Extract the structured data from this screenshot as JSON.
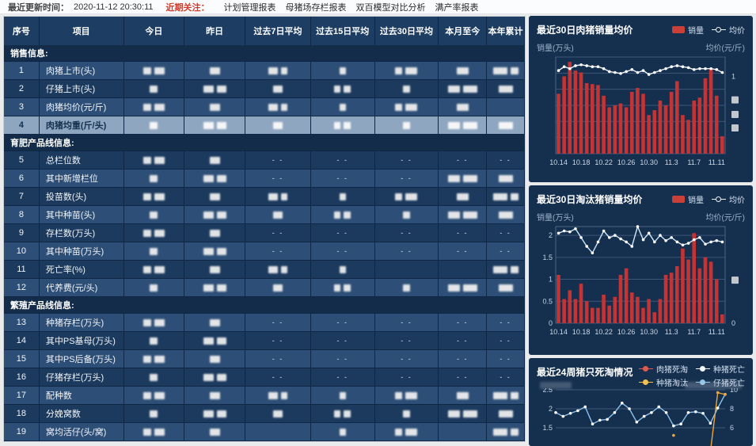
{
  "topbar": {
    "updated_label": "最近更新时间：",
    "updated_time": "2020-11-12 20:30:11",
    "focus_label": "近期关注：",
    "links": [
      "计划管理报表",
      "母猪场存栏报表",
      "双百模型对比分析",
      "满产率报表"
    ]
  },
  "table": {
    "headers": [
      "序号",
      "项目",
      "今日",
      "昨日",
      "过去7日平均",
      "过去15日平均",
      "过去30日平均",
      "本月至今",
      "本年累计"
    ],
    "cell_legend": "r = value redacted/blurred in screenshot, d = '- -' dashes, '' = empty",
    "groups": [
      {
        "title": "销售信息:",
        "rows": [
          {
            "no": "1",
            "label": "肉猪上市(头)",
            "highlight": false,
            "cells": [
              "r",
              "r",
              "r",
              "r",
              "r",
              "r",
              "r"
            ]
          },
          {
            "no": "2",
            "label": "仔猪上市(头)",
            "highlight": false,
            "cells": [
              "r",
              "r",
              "r",
              "r",
              "r",
              "r",
              "r"
            ]
          },
          {
            "no": "3",
            "label": "肉猪均价(元/斤)",
            "highlight": false,
            "cells": [
              "r",
              "r",
              "r",
              "r",
              "r",
              "r",
              ""
            ]
          },
          {
            "no": "4",
            "label": "肉猪均重(斤/头)",
            "highlight": true,
            "cells": [
              "r",
              "r",
              "r",
              "r",
              "r",
              "r",
              "r"
            ]
          }
        ]
      },
      {
        "title": "育肥产品线信息:",
        "rows": [
          {
            "no": "5",
            "label": "总栏位数",
            "highlight": false,
            "cells": [
              "r",
              "r",
              "d",
              "d",
              "d",
              "d",
              "d"
            ]
          },
          {
            "no": "6",
            "label": "其中新增栏位",
            "highlight": false,
            "cells": [
              "r",
              "r",
              "d",
              "d",
              "d",
              "r",
              "r"
            ]
          },
          {
            "no": "7",
            "label": "投苗数(头)",
            "highlight": false,
            "cells": [
              "r",
              "r",
              "r",
              "r",
              "r",
              "r",
              "r"
            ]
          },
          {
            "no": "8",
            "label": "其中种苗(头)",
            "highlight": false,
            "cells": [
              "r",
              "r",
              "r",
              "r",
              "r",
              "r",
              "r"
            ]
          },
          {
            "no": "9",
            "label": "存栏数(万头)",
            "highlight": false,
            "cells": [
              "r",
              "r",
              "d",
              "d",
              "d",
              "d",
              "d"
            ]
          },
          {
            "no": "10",
            "label": "其中种苗(万头)",
            "highlight": false,
            "cells": [
              "r",
              "r",
              "d",
              "d",
              "d",
              "d",
              "d"
            ]
          },
          {
            "no": "11",
            "label": "死亡率(%)",
            "highlight": false,
            "cells": [
              "r",
              "r",
              "r",
              "r",
              "",
              "",
              "r"
            ]
          },
          {
            "no": "12",
            "label": "代养费(元/头)",
            "highlight": false,
            "cells": [
              "r",
              "r",
              "r",
              "r",
              "r",
              "r",
              "r"
            ]
          }
        ]
      },
      {
        "title": "繁殖产品线信息:",
        "rows": [
          {
            "no": "13",
            "label": "种猪存栏(万头)",
            "highlight": false,
            "cells": [
              "r",
              "r",
              "d",
              "d",
              "d",
              "d",
              "d"
            ]
          },
          {
            "no": "14",
            "label": "其中PS基母(万头)",
            "highlight": false,
            "cells": [
              "r",
              "r",
              "d",
              "d",
              "d",
              "d",
              "d"
            ]
          },
          {
            "no": "15",
            "label": "其中PS后备(万头)",
            "highlight": false,
            "cells": [
              "r",
              "r",
              "d",
              "d",
              "d",
              "d",
              "d"
            ]
          },
          {
            "no": "16",
            "label": "仔猪存栏(万头)",
            "highlight": false,
            "cells": [
              "r",
              "r",
              "d",
              "d",
              "d",
              "d",
              "d"
            ]
          },
          {
            "no": "17",
            "label": "配种数",
            "highlight": false,
            "cells": [
              "r",
              "r",
              "r",
              "r",
              "r",
              "r",
              "r"
            ]
          },
          {
            "no": "18",
            "label": "分娩窝数",
            "highlight": false,
            "cells": [
              "r",
              "r",
              "r",
              "r",
              "r",
              "r",
              "r"
            ]
          },
          {
            "no": "19",
            "label": "窝均活仔(头/窝)",
            "highlight": false,
            "cells": [
              "r",
              "r",
              "",
              "r",
              "r",
              "",
              "r"
            ]
          }
        ]
      }
    ]
  },
  "chart_data": [
    {
      "type": "bar-line",
      "title": "最近30日肉猪销量均价",
      "legend": [
        {
          "name": "销量",
          "marker": "bar",
          "color": "#c84038"
        },
        {
          "name": "均价",
          "marker": "line",
          "color": "#eef5fb"
        }
      ],
      "ylabel_left": "销量(万头)",
      "ylabel_right": "均价(元/斤)",
      "x_ticks": [
        "10.14",
        "10.18",
        "10.22",
        "10.26",
        "10.30",
        "11.3",
        "11.7",
        "11.11"
      ],
      "bar_color": "#c43434",
      "line_color": "#e9f3fb",
      "bars_relative_0_100": [
        62,
        80,
        95,
        86,
        84,
        73,
        72,
        71,
        60,
        48,
        50,
        52,
        48,
        64,
        68,
        62,
        40,
        45,
        55,
        50,
        64,
        75,
        40,
        35,
        55,
        58,
        78,
        88,
        60,
        18
      ],
      "line_relative_0_100": [
        86,
        90,
        88,
        91,
        92,
        91,
        90,
        90,
        88,
        85,
        84,
        83,
        85,
        87,
        84,
        86,
        82,
        84,
        86,
        88,
        90,
        91,
        90,
        89,
        87,
        88,
        88,
        88,
        87,
        84
      ],
      "left_axis_labels": [],
      "right_axis_labels": [
        {
          "text": "1",
          "f": 0.2
        },
        {
          "redact": true,
          "f": 0.44
        },
        {
          "redact": true,
          "f": 0.59
        },
        {
          "redact": true,
          "f": 0.73
        }
      ],
      "gridlines": 7
    },
    {
      "type": "bar-line",
      "title": "最近30日淘汰猪销量均价",
      "legend": [
        {
          "name": "销量",
          "marker": "bar",
          "color": "#c84038"
        },
        {
          "name": "均价",
          "marker": "line",
          "color": "#eef5fb"
        }
      ],
      "ylabel_left": "销量(万头)",
      "ylabel_right": "均价(元/斤)",
      "x_ticks": [
        "10.14",
        "10.18",
        "10.22",
        "10.26",
        "10.30",
        "11.3",
        "11.7",
        "11.11"
      ],
      "bar_color": "#c43434",
      "line_color": "#cfe5f6",
      "ylim_left": [
        0,
        2.2
      ],
      "left_axis_labels": [
        {
          "text": "2",
          "v": 2
        },
        {
          "text": "1.5",
          "v": 1.5
        },
        {
          "text": "1",
          "v": 1
        },
        {
          "text": "0.5",
          "v": 0.5
        },
        {
          "text": "0",
          "v": 0
        }
      ],
      "right_axis_labels": [
        {
          "redact": true,
          "f": 0.55
        },
        {
          "text": "0",
          "f": 1.0
        }
      ],
      "bars": [
        1.1,
        0.55,
        0.75,
        0.55,
        0.9,
        0.5,
        0.35,
        0.35,
        0.65,
        0.4,
        0.6,
        1.1,
        1.25,
        0.7,
        0.6,
        0.35,
        0.55,
        0.25,
        0.55,
        1.1,
        1.15,
        1.3,
        1.7,
        1.45,
        2.05,
        1.25,
        1.5,
        1.4,
        1.0,
        0.2
      ],
      "line": [
        2.05,
        2.1,
        2.08,
        2.15,
        1.95,
        1.75,
        1.6,
        1.85,
        2.1,
        1.95,
        2.0,
        1.92,
        1.85,
        1.75,
        2.2,
        1.9,
        2.05,
        1.85,
        2.0,
        1.88,
        1.95,
        1.85,
        1.78,
        1.82,
        1.9,
        1.95,
        1.8,
        1.85,
        1.88,
        1.85
      ]
    },
    {
      "type": "line",
      "title": "最近24周猪只死淘情况",
      "legend": [
        {
          "name": "肉猪死淘",
          "color": "#e05a4e"
        },
        {
          "name": "种猪死亡",
          "color": "#f2f6fa"
        },
        {
          "name": "种猪淘汰",
          "color": "#f3c24a"
        },
        {
          "name": "仔猪死亡",
          "color": "#8fc2ea"
        }
      ],
      "left_axis_labels": [
        {
          "text": "2.5",
          "v": 2.5
        },
        {
          "text": "2",
          "v": 2
        },
        {
          "text": "1.5",
          "v": 1.5
        }
      ],
      "right_axis_labels": [
        {
          "text": "10",
          "v": 10
        },
        {
          "text": "8",
          "v": 8
        },
        {
          "text": "6",
          "v": 6
        }
      ],
      "series": [
        {
          "name": "仔猪死亡",
          "axis": "left",
          "color": "#8fc2ea",
          "values": [
            1.9,
            1.8,
            1.88,
            1.95,
            2.05,
            1.6,
            1.7,
            1.72,
            1.9,
            2.15,
            2.0,
            1.65,
            1.8,
            1.9,
            2.05,
            1.9,
            1.55,
            1.6,
            1.9,
            1.92,
            1.88,
            1.62,
            2.02,
            2.38
          ]
        },
        {
          "name": "种猪淘汰",
          "axis": "right",
          "color": "#eda53b",
          "values": [
            null,
            null,
            null,
            null,
            null,
            null,
            null,
            null,
            null,
            null,
            null,
            null,
            null,
            null,
            null,
            null,
            5.2,
            null,
            null,
            null,
            null,
            3.5,
            9.7,
            9.5
          ]
        }
      ]
    }
  ]
}
